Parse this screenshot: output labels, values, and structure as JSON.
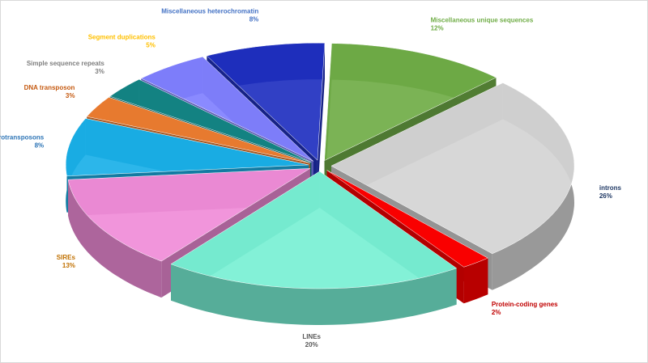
{
  "chart_data": {
    "type": "pie",
    "categories": [
      "Miscellaneous unique sequences",
      "introns",
      "Protein-coding genes",
      "LINEs",
      "SIREs",
      "LTR retrotransposons",
      "DNA transposon",
      "Simple sequence repeats",
      "Segment duplications",
      "Miscellaneous heterochromatin"
    ],
    "values": [
      12,
      26,
      2,
      20,
      13,
      8,
      3,
      3,
      5,
      8
    ],
    "value_labels": [
      "12%",
      "26%",
      "2%",
      "20%",
      "13%",
      "8%",
      "3%",
      "3%",
      "5%",
      "8%"
    ],
    "colors": [
      "#70ad47",
      "#d4d4d4",
      "#ff0000",
      "#78f0d4",
      "#f08cd8",
      "#1ab0e8",
      "#ed7d31",
      "#138585",
      "#8080ff",
      "#2030c0"
    ],
    "label_colors": [
      "#70ad47",
      "#1f3864",
      "#c00000",
      "#595959",
      "#c07000",
      "#2e75b6",
      "#c55a11",
      "#7f7f7f",
      "#ffc000",
      "#4472c4"
    ]
  }
}
